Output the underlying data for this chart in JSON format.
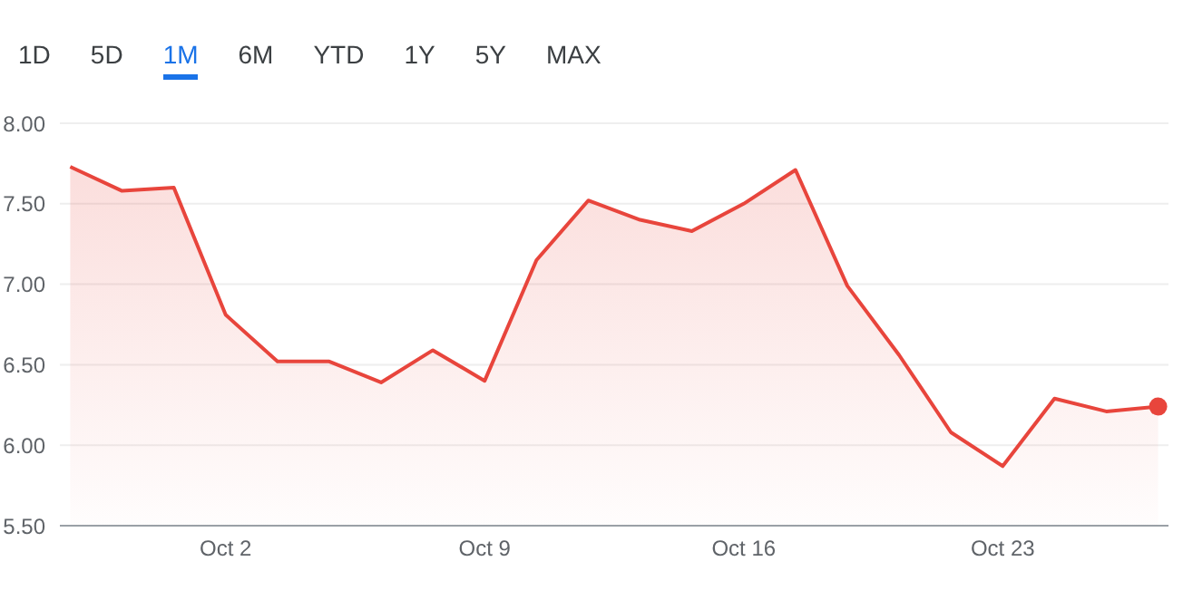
{
  "chart_data": {
    "type": "area",
    "annotations": [
      "1D",
      "5D",
      "1M",
      "6M",
      "YTD",
      "1Y",
      "5Y",
      "MAX"
    ],
    "categories": [
      null,
      null,
      null,
      "Oct 2",
      null,
      null,
      null,
      null,
      "Oct 9",
      null,
      null,
      null,
      null,
      "Oct 16",
      null,
      null,
      null,
      null,
      "Oct 23",
      null,
      null,
      null
    ],
    "values": [
      7.73,
      7.58,
      7.6,
      6.81,
      6.52,
      6.52,
      6.39,
      6.59,
      6.4,
      7.15,
      7.52,
      7.4,
      7.33,
      7.5,
      7.71,
      6.99,
      6.56,
      6.08,
      5.87,
      6.29,
      6.21,
      6.24
    ],
    "color": "#e8453c",
    "ylim": [
      5.5,
      8
    ],
    "yticks": [
      {
        "value": 5.5,
        "label": "5.50"
      },
      {
        "value": 6,
        "label": "6.00"
      },
      {
        "value": 6.5,
        "label": "6.50"
      },
      {
        "value": 7,
        "label": "7.00"
      },
      {
        "value": 7.5,
        "label": "7.50"
      },
      {
        "value": 8,
        "label": "8.00"
      }
    ],
    "grid": "y"
  }
}
